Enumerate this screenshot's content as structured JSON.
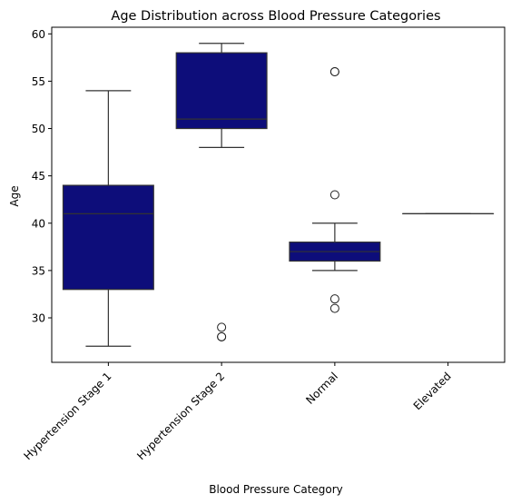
{
  "chart_data": {
    "type": "boxplot",
    "title": "Age Distribution across Blood Pressure Categories",
    "xlabel": "Blood Pressure Category",
    "ylabel": "Age",
    "ylim": [
      25.3,
      60.7
    ],
    "yticks": [
      30,
      35,
      40,
      45,
      50,
      55,
      60
    ],
    "grid": false,
    "box_color": "#0d0d7a",
    "line_color": "#333333",
    "categories": [
      "Hypertension Stage 1",
      "Hypertension Stage 2",
      "Normal",
      "Elevated"
    ],
    "boxes": [
      {
        "category": "Hypertension Stage 1",
        "whisker_low": 27,
        "q1": 33,
        "median": 41,
        "q3": 44,
        "whisker_high": 54,
        "outliers": []
      },
      {
        "category": "Hypertension Stage 2",
        "whisker_low": 48,
        "q1": 50,
        "median": 51,
        "q3": 58,
        "whisker_high": 59,
        "outliers": [
          28,
          28,
          29
        ]
      },
      {
        "category": "Normal",
        "whisker_low": 35,
        "q1": 36,
        "median": 37,
        "q3": 38,
        "whisker_high": 40,
        "outliers": [
          31,
          32,
          43,
          56,
          56
        ]
      },
      {
        "category": "Elevated",
        "whisker_low": 41,
        "q1": 41,
        "median": 41,
        "q3": 41,
        "whisker_high": 41,
        "outliers": []
      }
    ]
  }
}
